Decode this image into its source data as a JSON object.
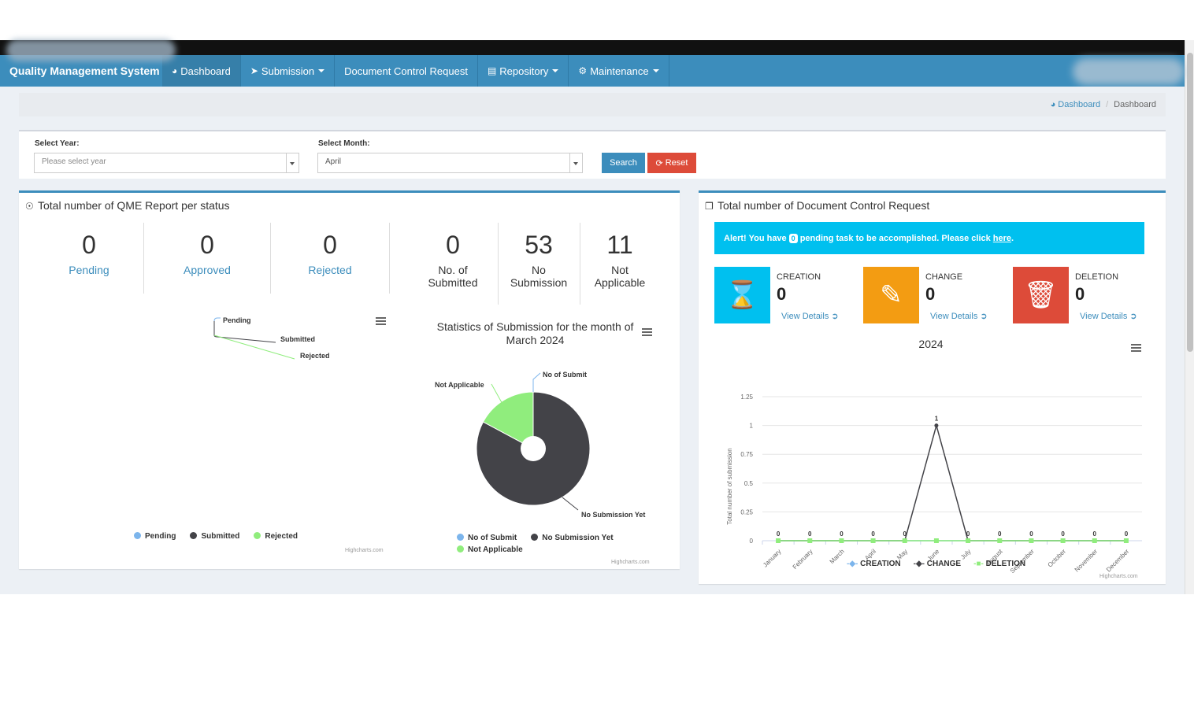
{
  "navbar": {
    "brand": "Quality Management System",
    "items": [
      {
        "label": "Dashboard",
        "icon": "dashboard-icon",
        "active": true,
        "dropdown": false
      },
      {
        "label": "Submission",
        "icon": "paper-plane-icon",
        "active": false,
        "dropdown": true
      },
      {
        "label": "Document Control Request",
        "icon": "",
        "active": false,
        "dropdown": false
      },
      {
        "label": "Repository",
        "icon": "repository-icon",
        "active": false,
        "dropdown": true
      },
      {
        "label": "Maintenance",
        "icon": "gears-icon",
        "active": false,
        "dropdown": true
      }
    ]
  },
  "breadcrumb": {
    "home": "Dashboard",
    "current": "Dashboard"
  },
  "filters": {
    "year_label": "Select Year:",
    "year_placeholder": "Please select year",
    "month_label": "Select Month:",
    "month_value": "April",
    "search_label": "Search",
    "reset_label": "Reset"
  },
  "qme_panel": {
    "title": "Total number of QME Report per status",
    "stats": [
      {
        "value": "0",
        "label": "Pending"
      },
      {
        "value": "0",
        "label": "Approved"
      },
      {
        "value": "0",
        "label": "Rejected"
      },
      {
        "value": "0",
        "label": "No. of Submitted"
      },
      {
        "value": "53",
        "label": "No Submission"
      },
      {
        "value": "11",
        "label": "Not Applicable"
      }
    ],
    "credit": "Highcharts.com"
  },
  "dcr_panel": {
    "title": "Total number of Document Control Request",
    "alert": {
      "prefix": "Alert! You have",
      "count": "0",
      "suffix": "pending task to be accomplished. Please click",
      "link": "here",
      "end": "."
    },
    "boxes": [
      {
        "title": "CREATION",
        "value": "0",
        "link": "View Details",
        "color": "#00c0ef",
        "icon": "hourglass-icon"
      },
      {
        "title": "CHANGE",
        "value": "0",
        "link": "View Details",
        "color": "#f39c12",
        "icon": "edit-icon"
      },
      {
        "title": "DELETION",
        "value": "0",
        "link": "View Details",
        "color": "#dd4b39",
        "icon": "trash-icon"
      }
    ],
    "credit": "Highcharts.com"
  },
  "chart_data": [
    {
      "type": "pie",
      "title": "",
      "categories": [
        "Pending",
        "Submitted",
        "Rejected"
      ],
      "values": [
        0,
        0,
        0
      ],
      "colors": [
        "#7cb5ec",
        "#434348",
        "#90ed7d"
      ],
      "legend": "bottom-center"
    },
    {
      "type": "pie",
      "title": "Statistics of Submission for the month of March 2024",
      "categories": [
        "No of Submit",
        "No Submission Yet",
        "Not Applicable"
      ],
      "values": [
        0,
        53,
        11
      ],
      "colors": [
        "#7cb5ec",
        "#434348",
        "#90ed7d"
      ],
      "legend": "bottom-center"
    },
    {
      "type": "line",
      "title": "2024",
      "xlabel": "",
      "ylabel": "Total number of submission",
      "categories": [
        "January",
        "February",
        "March",
        "April",
        "May",
        "June",
        "July",
        "August",
        "September",
        "October",
        "November",
        "December"
      ],
      "yticks": [
        "0",
        "0.25",
        "0.5",
        "0.75",
        "1",
        "1.25"
      ],
      "ylim": [
        0,
        1.25
      ],
      "grid": true,
      "legend": "bottom-center",
      "series": [
        {
          "name": "CREATION",
          "color": "#7cb5ec",
          "values": [
            0,
            0,
            0,
            0,
            0,
            0,
            0,
            0,
            0,
            0,
            0,
            0
          ]
        },
        {
          "name": "CHANGE",
          "color": "#434348",
          "values": [
            0,
            0,
            0,
            0,
            0,
            1,
            0,
            0,
            0,
            0,
            0,
            0
          ]
        },
        {
          "name": "DELETION",
          "color": "#90ed7d",
          "values": [
            0,
            0,
            0,
            0,
            0,
            0,
            0,
            0,
            0,
            0,
            0,
            0
          ]
        }
      ]
    }
  ]
}
